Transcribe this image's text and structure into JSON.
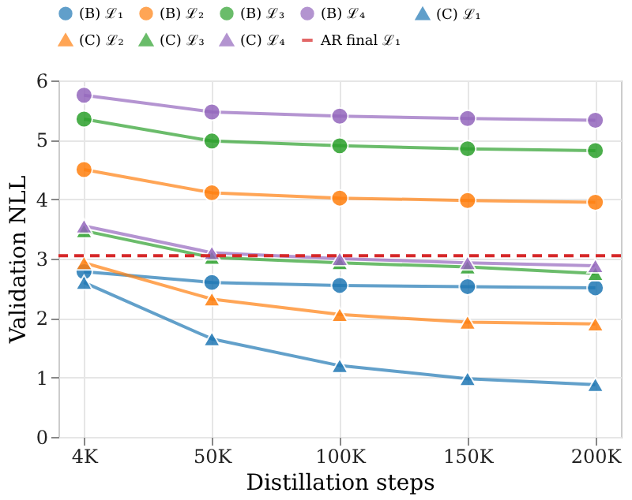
{
  "chart_data": {
    "type": "line",
    "xlabel": "Distillation steps",
    "ylabel": "Validation NLL",
    "categories": [
      "4K",
      "50K",
      "100K",
      "150K",
      "200K"
    ],
    "series": [
      {
        "name": "(B) ℒ₁",
        "color": "#1f77b4",
        "marker": "circle",
        "values": [
          2.78,
          2.6,
          2.55,
          2.53,
          2.51
        ]
      },
      {
        "name": "(B) ℒ₂",
        "color": "#ff7f0e",
        "marker": "circle",
        "values": [
          4.5,
          4.11,
          4.02,
          3.98,
          3.95
        ]
      },
      {
        "name": "(B) ℒ₃",
        "color": "#2ca02c",
        "marker": "circle",
        "values": [
          5.35,
          4.98,
          4.9,
          4.85,
          4.82
        ]
      },
      {
        "name": "(B) ℒ₄",
        "color": "#9467bd",
        "marker": "circle",
        "values": [
          5.75,
          5.47,
          5.4,
          5.36,
          5.33
        ]
      },
      {
        "name": "(C) ℒ₁",
        "color": "#1f77b4",
        "marker": "triangle",
        "values": [
          2.6,
          1.65,
          1.2,
          0.98,
          0.88
        ]
      },
      {
        "name": "(C) ℒ₂",
        "color": "#ff7f0e",
        "marker": "triangle",
        "values": [
          2.93,
          2.32,
          2.06,
          1.93,
          1.9
        ]
      },
      {
        "name": "(C) ℒ₃",
        "color": "#2ca02c",
        "marker": "triangle",
        "values": [
          3.47,
          3.02,
          2.93,
          2.86,
          2.75
        ]
      },
      {
        "name": "(C) ℒ₄",
        "color": "#9467bd",
        "marker": "triangle",
        "values": [
          3.55,
          3.1,
          3.0,
          2.93,
          2.88
        ]
      }
    ],
    "ref_lines": [
      {
        "axis": "y",
        "value": 3.05,
        "label": "AR final ℒ₁",
        "color": "#d62728",
        "line_style": "dashed"
      }
    ],
    "ylim": [
      0,
      6
    ],
    "yticks": [
      0,
      1,
      2,
      3,
      4,
      5,
      6
    ],
    "grid": true,
    "legend": "top",
    "line_style": "solid"
  }
}
